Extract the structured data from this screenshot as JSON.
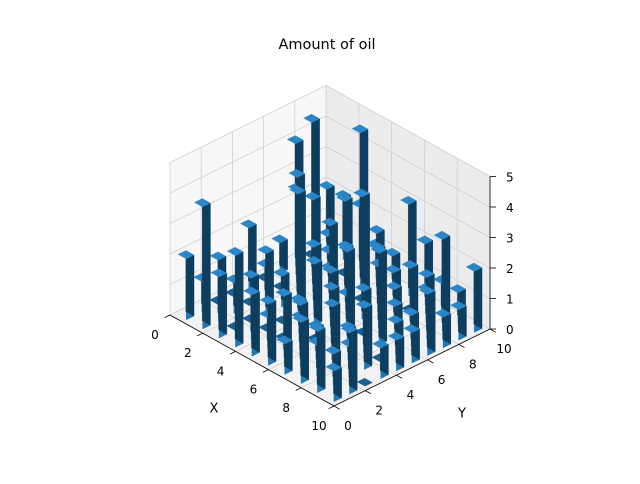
{
  "chart_data": {
    "type": "bar3d",
    "title": "Amount of oil",
    "xlabel": "X",
    "ylabel": "Y",
    "zlabel": "",
    "xlim": [
      0,
      10
    ],
    "ylim": [
      0,
      10
    ],
    "zlim": [
      0,
      5
    ],
    "xticks": [
      "0",
      "2",
      "4",
      "6",
      "8",
      "10"
    ],
    "yticks": [
      "0",
      "2",
      "4",
      "6",
      "8",
      "10"
    ],
    "zticks": [
      "0",
      "1",
      "2",
      "3",
      "4",
      "5"
    ],
    "bar_color": "#1f77b4",
    "grid": true,
    "bars": [
      {
        "x": 0,
        "y": 0,
        "z": 2
      },
      {
        "x": 0,
        "y": 1,
        "z": 1
      },
      {
        "x": 0,
        "y": 2,
        "z": 0
      },
      {
        "x": 0,
        "y": 3,
        "z": 0
      },
      {
        "x": 0,
        "y": 4,
        "z": 2
      },
      {
        "x": 0,
        "y": 5,
        "z": 0
      },
      {
        "x": 0,
        "y": 6,
        "z": 1
      },
      {
        "x": 0,
        "y": 7,
        "z": 4
      },
      {
        "x": 0,
        "y": 8,
        "z": 0
      },
      {
        "x": 0,
        "y": 9,
        "z": 2
      },
      {
        "x": 1,
        "y": 0,
        "z": 4
      },
      {
        "x": 1,
        "y": 1,
        "z": 2
      },
      {
        "x": 1,
        "y": 2,
        "z": 1
      },
      {
        "x": 1,
        "y": 3,
        "z": 0
      },
      {
        "x": 1,
        "y": 4,
        "z": 1
      },
      {
        "x": 1,
        "y": 5,
        "z": 0
      },
      {
        "x": 1,
        "y": 6,
        "z": 3
      },
      {
        "x": 1,
        "y": 7,
        "z": 5
      },
      {
        "x": 1,
        "y": 8,
        "z": 1
      },
      {
        "x": 1,
        "y": 9,
        "z": 2
      },
      {
        "x": 2,
        "y": 0,
        "z": 2
      },
      {
        "x": 2,
        "y": 1,
        "z": 0
      },
      {
        "x": 2,
        "y": 2,
        "z": 0
      },
      {
        "x": 2,
        "y": 3,
        "z": 2
      },
      {
        "x": 2,
        "y": 4,
        "z": 1
      },
      {
        "x": 2,
        "y": 5,
        "z": 4
      },
      {
        "x": 2,
        "y": 6,
        "z": 3
      },
      {
        "x": 2,
        "y": 7,
        "z": 1
      },
      {
        "x": 2,
        "y": 8,
        "z": 0
      },
      {
        "x": 2,
        "y": 9,
        "z": 2
      },
      {
        "x": 3,
        "y": 0,
        "z": 3
      },
      {
        "x": 3,
        "y": 1,
        "z": 2
      },
      {
        "x": 3,
        "y": 2,
        "z": 0
      },
      {
        "x": 3,
        "y": 3,
        "z": 0
      },
      {
        "x": 3,
        "y": 4,
        "z": 4
      },
      {
        "x": 3,
        "y": 5,
        "z": 2
      },
      {
        "x": 3,
        "y": 6,
        "z": 1
      },
      {
        "x": 3,
        "y": 7,
        "z": 3
      },
      {
        "x": 3,
        "y": 8,
        "z": 5
      },
      {
        "x": 3,
        "y": 9,
        "z": 1
      },
      {
        "x": 4,
        "y": 0,
        "z": 2
      },
      {
        "x": 4,
        "y": 1,
        "z": 1
      },
      {
        "x": 4,
        "y": 2,
        "z": 0
      },
      {
        "x": 4,
        "y": 3,
        "z": 1
      },
      {
        "x": 4,
        "y": 4,
        "z": 2
      },
      {
        "x": 4,
        "y": 5,
        "z": 3
      },
      {
        "x": 4,
        "y": 6,
        "z": 2
      },
      {
        "x": 4,
        "y": 7,
        "z": 0
      },
      {
        "x": 4,
        "y": 8,
        "z": 2
      },
      {
        "x": 4,
        "y": 9,
        "z": 1
      },
      {
        "x": 5,
        "y": 0,
        "z": 2
      },
      {
        "x": 5,
        "y": 1,
        "z": 2
      },
      {
        "x": 5,
        "y": 2,
        "z": 1
      },
      {
        "x": 5,
        "y": 3,
        "z": 0
      },
      {
        "x": 5,
        "y": 4,
        "z": 2
      },
      {
        "x": 5,
        "y": 5,
        "z": 1
      },
      {
        "x": 5,
        "y": 6,
        "z": 4
      },
      {
        "x": 5,
        "y": 7,
        "z": 2
      },
      {
        "x": 5,
        "y": 8,
        "z": 1
      },
      {
        "x": 5,
        "y": 9,
        "z": 3
      },
      {
        "x": 6,
        "y": 0,
        "z": 1
      },
      {
        "x": 6,
        "y": 1,
        "z": 2
      },
      {
        "x": 6,
        "y": 2,
        "z": 1
      },
      {
        "x": 6,
        "y": 3,
        "z": 2
      },
      {
        "x": 6,
        "y": 4,
        "z": 3
      },
      {
        "x": 6,
        "y": 5,
        "z": 0
      },
      {
        "x": 6,
        "y": 6,
        "z": 2
      },
      {
        "x": 6,
        "y": 7,
        "z": 1
      },
      {
        "x": 6,
        "y": 8,
        "z": 0
      },
      {
        "x": 6,
        "y": 9,
        "z": 2
      },
      {
        "x": 7,
        "y": 0,
        "z": 2
      },
      {
        "x": 7,
        "y": 1,
        "z": 1
      },
      {
        "x": 7,
        "y": 2,
        "z": 2
      },
      {
        "x": 7,
        "y": 3,
        "z": 1
      },
      {
        "x": 7,
        "y": 4,
        "z": 2
      },
      {
        "x": 7,
        "y": 5,
        "z": 3
      },
      {
        "x": 7,
        "y": 6,
        "z": 1
      },
      {
        "x": 7,
        "y": 7,
        "z": 2
      },
      {
        "x": 7,
        "y": 8,
        "z": 1
      },
      {
        "x": 7,
        "y": 9,
        "z": 1
      },
      {
        "x": 8,
        "y": 0,
        "z": 2
      },
      {
        "x": 8,
        "y": 1,
        "z": 1
      },
      {
        "x": 8,
        "y": 2,
        "z": 1
      },
      {
        "x": 8,
        "y": 3,
        "z": 2
      },
      {
        "x": 8,
        "y": 4,
        "z": 0
      },
      {
        "x": 8,
        "y": 5,
        "z": 1
      },
      {
        "x": 8,
        "y": 6,
        "z": 1
      },
      {
        "x": 8,
        "y": 7,
        "z": 2
      },
      {
        "x": 8,
        "y": 8,
        "z": 3
      },
      {
        "x": 8,
        "y": 9,
        "z": 1
      },
      {
        "x": 9,
        "y": 0,
        "z": 1
      },
      {
        "x": 9,
        "y": 1,
        "z": 2
      },
      {
        "x": 9,
        "y": 2,
        "z": 0
      },
      {
        "x": 9,
        "y": 3,
        "z": 1
      },
      {
        "x": 9,
        "y": 4,
        "z": 1
      },
      {
        "x": 9,
        "y": 5,
        "z": 1
      },
      {
        "x": 9,
        "y": 6,
        "z": 2
      },
      {
        "x": 9,
        "y": 7,
        "z": 1
      },
      {
        "x": 9,
        "y": 8,
        "z": 1
      },
      {
        "x": 9,
        "y": 9,
        "z": 2
      }
    ]
  }
}
